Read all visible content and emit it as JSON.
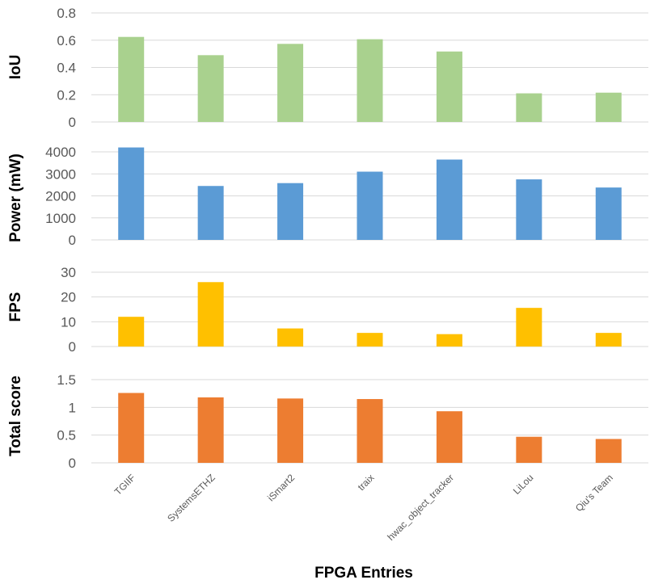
{
  "chart_data": {
    "type": "bar",
    "xlabel": "FPGA Entries",
    "categories": [
      "TGIIF",
      "SystemsETHZ",
      "iSmart2",
      "traix",
      "hwac_object_tracker",
      "LiLou",
      "Qiu's Team"
    ],
    "panels": [
      {
        "ylabel": "IoU",
        "color": "#a9d18e",
        "ylim": [
          0,
          0.8
        ],
        "ticks": [
          0,
          0.2,
          0.4,
          0.6,
          0.8
        ],
        "tick_labels": [
          "0",
          "0.2",
          "0.4",
          "0.6",
          "0.8"
        ],
        "values": [
          0.624,
          0.49,
          0.573,
          0.607,
          0.517,
          0.21,
          0.215
        ]
      },
      {
        "ylabel": "Power (mW)",
        "color": "#5b9bd5",
        "ylim": [
          0,
          4000
        ],
        "ticks": [
          0,
          1000,
          2000,
          3000,
          4000
        ],
        "tick_labels": [
          "0",
          "1000",
          "2000",
          "3000",
          "4000"
        ],
        "values": [
          4200,
          2450,
          2580,
          3100,
          3650,
          2750,
          2380
        ]
      },
      {
        "ylabel": "FPS",
        "color": "#ffc000",
        "ylim": [
          0,
          30
        ],
        "ticks": [
          0,
          10,
          20,
          30
        ],
        "tick_labels": [
          "0",
          "10",
          "20",
          "30"
        ],
        "values": [
          12.0,
          26.0,
          7.3,
          5.5,
          5.0,
          15.6,
          5.5
        ]
      },
      {
        "ylabel": "Total score",
        "color": "#ed7d31",
        "ylim": [
          0,
          1.5
        ],
        "ticks": [
          0,
          0.5,
          1,
          1.5
        ],
        "tick_labels": [
          "0",
          "0.5",
          "1",
          "1.5"
        ],
        "values": [
          1.26,
          1.18,
          1.16,
          1.15,
          0.93,
          0.47,
          0.43
        ]
      }
    ]
  }
}
